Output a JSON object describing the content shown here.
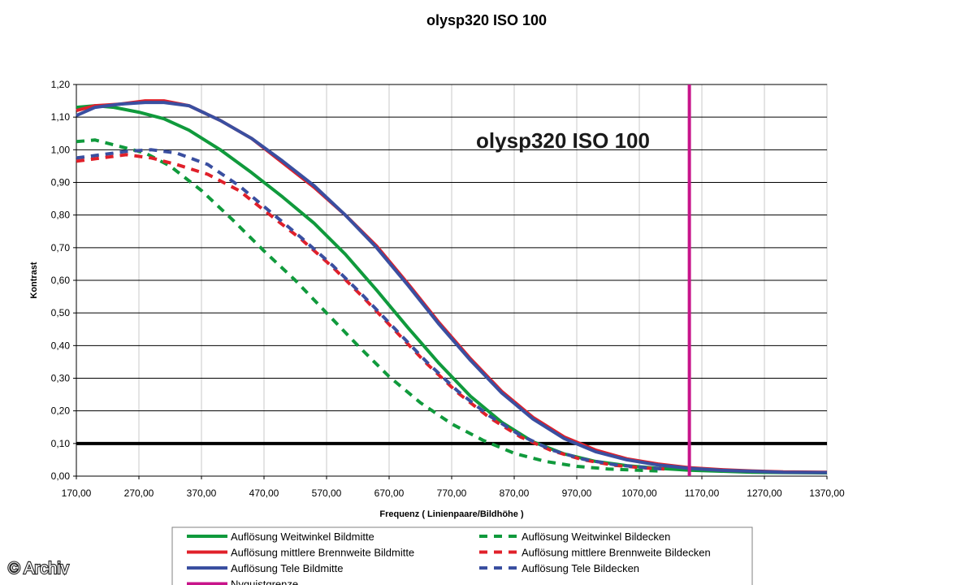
{
  "chart_data": {
    "type": "line",
    "title": "olysp320   ISO 100",
    "inner_title": "olysp320   ISO 100",
    "xlabel": "Frequenz ( Linienpaare/Bildhöhe )",
    "ylabel": "Kontrast",
    "xlim": [
      170,
      1370
    ],
    "ylim": [
      0,
      1.2
    ],
    "x_ticks": [
      "170,00",
      "270,00",
      "370,00",
      "470,00",
      "570,00",
      "670,00",
      "770,00",
      "870,00",
      "970,00",
      "1070,00",
      "1170,00",
      "1270,00",
      "1370,00"
    ],
    "y_ticks": [
      "0,00",
      "0,10",
      "0,20",
      "0,30",
      "0,40",
      "0,50",
      "0,60",
      "0,70",
      "0,80",
      "0,90",
      "1,00",
      "1,10",
      "1,20"
    ],
    "grid": "horizontal",
    "legend_position": "bottom",
    "series": [
      {
        "name": "Auflösung Weitwinkel Bildmitte",
        "color": "#109a3c",
        "dash": "solid",
        "x": [
          170,
          200,
          230,
          270,
          310,
          350,
          400,
          450,
          500,
          550,
          600,
          650,
          700,
          750,
          800,
          850,
          900,
          950,
          1000,
          1050,
          1100,
          1150,
          1200,
          1250,
          1300,
          1370
        ],
        "y": [
          1.13,
          1.135,
          1.13,
          1.115,
          1.095,
          1.06,
          1.0,
          0.93,
          0.855,
          0.775,
          0.68,
          0.57,
          0.455,
          0.345,
          0.245,
          0.165,
          0.105,
          0.068,
          0.045,
          0.032,
          0.024,
          0.018,
          0.015,
          0.012,
          0.011,
          0.01
        ]
      },
      {
        "name": "Auflösung mittlere Brennweite Bildmitte",
        "color": "#e0202a",
        "dash": "solid",
        "x": [
          170,
          200,
          240,
          280,
          310,
          350,
          400,
          450,
          500,
          550,
          600,
          650,
          700,
          750,
          800,
          850,
          900,
          950,
          1000,
          1050,
          1100,
          1150,
          1200,
          1250,
          1300,
          1370
        ],
        "y": [
          1.12,
          1.135,
          1.14,
          1.15,
          1.15,
          1.135,
          1.09,
          1.035,
          0.96,
          0.885,
          0.8,
          0.705,
          0.59,
          0.47,
          0.36,
          0.26,
          0.18,
          0.12,
          0.08,
          0.053,
          0.037,
          0.026,
          0.02,
          0.016,
          0.013,
          0.012
        ]
      },
      {
        "name": "Auflösung Tele Bildmitte",
        "color": "#3a4fa0",
        "dash": "solid",
        "x": [
          170,
          200,
          240,
          280,
          310,
          350,
          400,
          450,
          500,
          550,
          600,
          650,
          700,
          750,
          800,
          850,
          900,
          950,
          1000,
          1050,
          1100,
          1150,
          1200,
          1250,
          1300,
          1370
        ],
        "y": [
          1.105,
          1.13,
          1.14,
          1.145,
          1.145,
          1.135,
          1.09,
          1.035,
          0.965,
          0.89,
          0.8,
          0.7,
          0.585,
          0.465,
          0.355,
          0.255,
          0.175,
          0.115,
          0.075,
          0.05,
          0.034,
          0.024,
          0.018,
          0.015,
          0.012,
          0.011
        ]
      },
      {
        "name": "Nyquistgrenze",
        "color": "#c8148a",
        "dash": "solid",
        "x": [
          1150,
          1150
        ],
        "y": [
          0,
          1.2
        ]
      },
      {
        "name": "Auflösung Weitwinkel Bildecken",
        "color": "#109a3c",
        "dash": "dashed",
        "x": [
          170,
          200,
          240,
          280,
          320,
          370,
          420,
          470,
          520,
          570,
          620,
          670,
          720,
          770,
          820,
          870,
          920,
          970,
          1020,
          1070,
          1100
        ],
        "y": [
          1.025,
          1.03,
          1.01,
          0.99,
          0.95,
          0.875,
          0.785,
          0.69,
          0.6,
          0.5,
          0.4,
          0.305,
          0.225,
          0.16,
          0.11,
          0.07,
          0.045,
          0.03,
          0.022,
          0.018,
          0.016
        ]
      },
      {
        "name": "Auflösung mittlere Brennweite Bildecken",
        "color": "#e0202a",
        "dash": "dashed",
        "x": [
          170,
          210,
          250,
          290,
          330,
          380,
          430,
          480,
          530,
          580,
          630,
          680,
          730,
          780,
          830,
          880,
          930,
          980,
          1030,
          1080,
          1110
        ],
        "y": [
          0.965,
          0.975,
          0.985,
          0.975,
          0.955,
          0.925,
          0.875,
          0.8,
          0.725,
          0.64,
          0.545,
          0.445,
          0.345,
          0.255,
          0.18,
          0.12,
          0.078,
          0.05,
          0.033,
          0.025,
          0.022
        ]
      },
      {
        "name": "Auflösung Tele Bildecken",
        "color": "#3a4fa0",
        "dash": "dashed",
        "x": [
          170,
          210,
          250,
          290,
          330,
          380,
          430,
          480,
          530,
          580,
          630,
          680,
          730,
          780,
          830,
          880,
          930,
          980,
          1030,
          1080,
          1110
        ],
        "y": [
          0.975,
          0.985,
          0.995,
          1.0,
          0.99,
          0.955,
          0.89,
          0.81,
          0.73,
          0.645,
          0.55,
          0.45,
          0.35,
          0.26,
          0.185,
          0.125,
          0.08,
          0.052,
          0.035,
          0.026,
          0.022
        ]
      }
    ],
    "reference_line": {
      "y": 0.1,
      "color": "#000000"
    }
  },
  "legend": {
    "left": [
      {
        "label": "Auflösung Weitwinkel Bildmitte",
        "color": "#109a3c",
        "icon": "solid-line"
      },
      {
        "label": "Auflösung mittlere Brennweite Bildmitte",
        "color": "#e0202a",
        "icon": "solid-line"
      },
      {
        "label": "Auflösung Tele Bildmitte",
        "color": "#3a4fa0",
        "icon": "solid-line"
      },
      {
        "label": "Nyquistgrenze",
        "color": "#c8148a",
        "icon": "solid-line"
      }
    ],
    "right": [
      {
        "label": "Auflösung Weitwinkel Bildecken",
        "color": "#109a3c",
        "icon": "dashed-line"
      },
      {
        "label": "Auflösung mittlere Brennweite Bildecken",
        "color": "#e0202a",
        "icon": "dashed-line"
      },
      {
        "label": "Auflösung Tele Bildecken",
        "color": "#3a4fa0",
        "icon": "dashed-line"
      }
    ]
  },
  "watermark": "© Archiv"
}
